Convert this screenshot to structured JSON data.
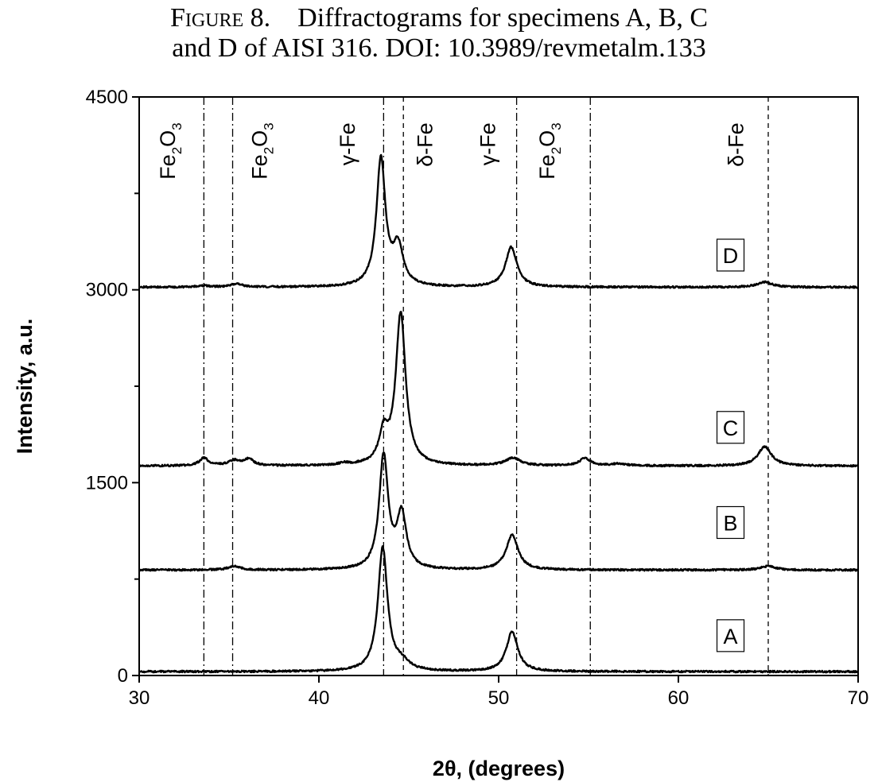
{
  "caption": {
    "figure_label": "Figure 8.",
    "line1_rest": "Diffractograms for specimens A, B, C",
    "line2": "and D of AISI 316.  DOI: 10.3989/revmetalm.133"
  },
  "chart_data": {
    "type": "line",
    "xlabel": "2θ, (degrees)",
    "ylabel": "Intensity, a.u.",
    "xlim": [
      30,
      70
    ],
    "ylim": [
      0,
      4500
    ],
    "x_ticks": [
      30,
      40,
      50,
      60,
      70
    ],
    "y_ticks": [
      0,
      1500,
      3000,
      4500
    ],
    "y_minor_step": 750,
    "grid": false,
    "reference_lines": [
      {
        "x": 33.6,
        "style": "dashdot"
      },
      {
        "x": 35.2,
        "style": "dashdot"
      },
      {
        "x": 43.6,
        "style": "dashdot"
      },
      {
        "x": 44.7,
        "style": "dashed"
      },
      {
        "x": 51.0,
        "style": "dashdot"
      },
      {
        "x": 55.1,
        "style": "dashdot"
      },
      {
        "x": 65.0,
        "style": "dashed"
      }
    ],
    "phase_annotations": [
      {
        "x": 32.0,
        "y": 4300,
        "base": "Fe",
        "sub1": "2",
        "mid": "O",
        "sub2": "3"
      },
      {
        "x": 37.1,
        "y": 4300,
        "base": "Fe",
        "sub1": "2",
        "mid": "O",
        "sub2": "3"
      },
      {
        "x": 42.0,
        "y": 4300,
        "text": "γ-Fe"
      },
      {
        "x": 46.3,
        "y": 4300,
        "text": "δ-Fe"
      },
      {
        "x": 49.8,
        "y": 4300,
        "text": "γ-Fe"
      },
      {
        "x": 53.1,
        "y": 4300,
        "base": "Fe",
        "sub1": "2",
        "mid": "O",
        "sub2": "3"
      },
      {
        "x": 63.6,
        "y": 4300,
        "text": "δ-Fe"
      }
    ],
    "series": [
      {
        "name": "A",
        "label_pos": {
          "x": 62.9,
          "y": 310
        },
        "baseline": 30,
        "peaks": [
          [
            43.55,
            960,
            0.32
          ],
          [
            44.6,
            60,
            0.5
          ],
          [
            50.75,
            310,
            0.38
          ]
        ]
      },
      {
        "name": "B",
        "label_pos": {
          "x": 62.9,
          "y": 1190
        },
        "baseline": 820,
        "peaks": [
          [
            35.3,
            30,
            0.4
          ],
          [
            43.6,
            880,
            0.3
          ],
          [
            44.6,
            420,
            0.32
          ],
          [
            50.75,
            270,
            0.4
          ],
          [
            65.0,
            30,
            0.5
          ]
        ]
      },
      {
        "name": "C",
        "label_pos": {
          "x": 62.9,
          "y": 1930
        },
        "baseline": 1630,
        "peaks": [
          [
            33.6,
            60,
            0.3
          ],
          [
            35.3,
            40,
            0.4
          ],
          [
            36.1,
            50,
            0.3
          ],
          [
            41.4,
            15,
            0.3
          ],
          [
            43.6,
            230,
            0.3
          ],
          [
            44.55,
            1180,
            0.33
          ],
          [
            50.8,
            60,
            0.5
          ],
          [
            54.8,
            60,
            0.35
          ],
          [
            56.7,
            15,
            0.5
          ],
          [
            64.8,
            150,
            0.45
          ]
        ]
      },
      {
        "name": "D",
        "label_pos": {
          "x": 62.9,
          "y": 3270
        },
        "baseline": 3020,
        "peaks": [
          [
            33.6,
            10,
            0.4
          ],
          [
            35.4,
            25,
            0.4
          ],
          [
            43.45,
            990,
            0.3
          ],
          [
            44.4,
            300,
            0.35
          ],
          [
            50.7,
            310,
            0.38
          ],
          [
            64.8,
            40,
            0.5
          ]
        ]
      }
    ]
  }
}
